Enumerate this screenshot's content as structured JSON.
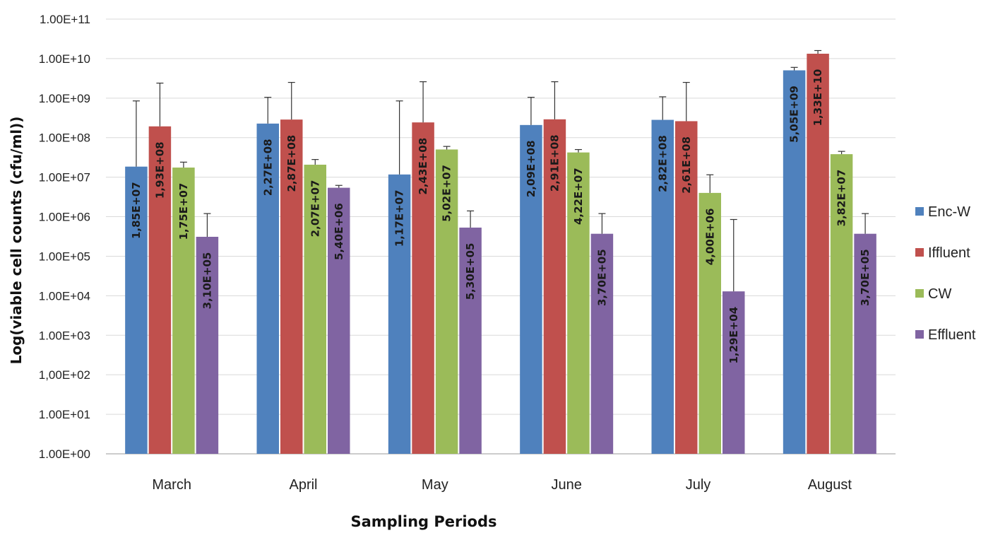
{
  "chart_data": {
    "type": "bar",
    "title": "",
    "xlabel": "Sampling Periods",
    "ylabel": "Log(viable cell counts (cfu/ml))",
    "yscale": "log",
    "ylim": [
      1,
      100000000000
    ],
    "y_tick_labels": [
      "1.00E+00",
      "1.00E+01",
      "1,00E+02",
      "1.00E+03",
      "1.00E+04",
      "1.00E+05",
      "1.00E+06",
      "1.00E+07",
      "1.00E+08",
      "1.00E+09",
      "1.00E+10",
      "1.00E+11"
    ],
    "grid": "horizontal",
    "legend_position": "right",
    "categories": [
      "March",
      "April",
      "May",
      "June",
      "July",
      "August"
    ],
    "series": [
      {
        "name": "Enc-W",
        "color": "#4f81bd",
        "values": [
          18500000,
          227000000,
          11700000,
          209000000,
          282000000,
          5050000000
        ],
        "labels": [
          "1,85E+07",
          "2,27E+08",
          "1,17E+07",
          "2,09E+08",
          "2,82E+08",
          "5,05E+09"
        ],
        "error_upper": [
          850000000,
          1050000000,
          850000000,
          1050000000,
          1080000000,
          6000000000
        ]
      },
      {
        "name": "Iffluent",
        "color": "#c0504d",
        "values": [
          193000000,
          287000000,
          243000000,
          291000000,
          261000000,
          13300000000
        ],
        "labels": [
          "1,93E+08",
          "2,87E+08",
          "2,43E+08",
          "2,91E+08",
          "2,61E+08",
          "1,33E+10"
        ],
        "error_upper": [
          2400000000,
          2500000000,
          2600000000,
          2600000000,
          2500000000,
          16000000000
        ]
      },
      {
        "name": "CW",
        "color": "#9bbb59",
        "values": [
          17500000,
          20700000,
          50200000,
          42200000,
          4000000,
          38200000
        ],
        "labels": [
          "1,75E+07",
          "2,07E+07",
          "5,02E+07",
          "4,22E+07",
          "4,00E+06",
          "3,82E+07"
        ],
        "error_upper": [
          24000000,
          28000000,
          60000000,
          50000000,
          11500000,
          45000000
        ]
      },
      {
        "name": "Effluent",
        "color": "#8064a2",
        "values": [
          310000,
          5400000,
          530000,
          370000,
          12900,
          370000
        ],
        "labels": [
          "3,10E+05",
          "5,40E+06",
          "5,30E+05",
          "3,70E+05",
          "1,29E+04",
          "3,70E+05"
        ],
        "error_upper": [
          1200000,
          6200000,
          1400000,
          1200000,
          850000,
          1200000
        ]
      }
    ]
  }
}
